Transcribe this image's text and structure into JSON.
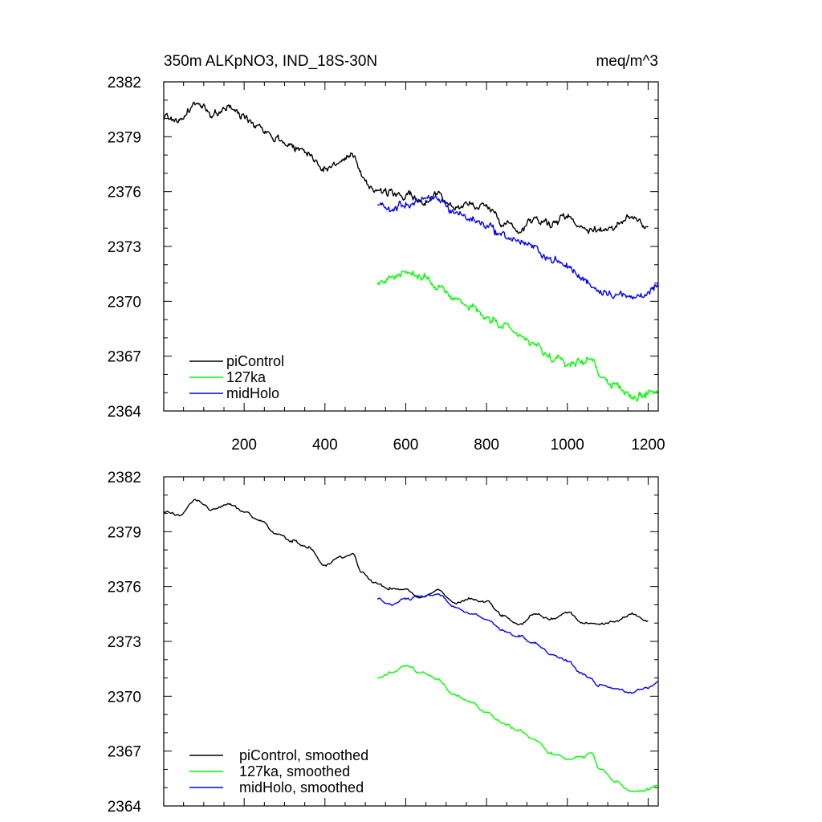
{
  "chart_data": [
    {
      "type": "line",
      "panel": "raw",
      "title_left": "350m ALKpNO3, IND_18S-30N",
      "title_right": "meq/m^3",
      "xlim": [
        1,
        1225
      ],
      "ylim": [
        2364,
        2382
      ],
      "yticks": [
        "2382",
        "2379",
        "2376",
        "2373",
        "2370",
        "2367",
        "2364"
      ],
      "xticks": [
        "200",
        "400",
        "600",
        "800",
        "1000",
        "1200"
      ],
      "show_x_tick_labels": true,
      "legend_position": "bottom-left",
      "series": [
        {
          "name": "piControl",
          "color": "#000000",
          "x": [
            1,
            40,
            80,
            120,
            160,
            200,
            240,
            280,
            320,
            360,
            400,
            440,
            470,
            490,
            520,
            560,
            600,
            640,
            680,
            720,
            760,
            800,
            840,
            880,
            920,
            960,
            1000,
            1040,
            1080,
            1120,
            1160,
            1200
          ],
          "values": [
            2380.1,
            2379.9,
            2380.8,
            2380.2,
            2380.6,
            2380.1,
            2379.6,
            2378.9,
            2378.5,
            2378.1,
            2377.2,
            2377.7,
            2377.9,
            2376.8,
            2376.2,
            2375.9,
            2375.8,
            2375.4,
            2375.9,
            2375.1,
            2375.3,
            2375.2,
            2374.4,
            2373.9,
            2374.6,
            2374.2,
            2374.7,
            2374.0,
            2373.9,
            2374.1,
            2374.6,
            2374.1
          ]
        },
        {
          "name": "127ka",
          "color": "#00ff00",
          "x": [
            530,
            560,
            600,
            640,
            680,
            720,
            760,
            800,
            840,
            880,
            920,
            960,
            1000,
            1040,
            1060,
            1080,
            1120,
            1160,
            1200,
            1225
          ],
          "values": [
            2371.0,
            2371.3,
            2371.6,
            2371.3,
            2370.9,
            2370.1,
            2369.7,
            2369.1,
            2368.6,
            2368.1,
            2367.6,
            2366.9,
            2366.6,
            2366.7,
            2366.9,
            2366.0,
            2365.3,
            2364.8,
            2364.9,
            2365.2
          ]
        },
        {
          "name": "midHolo",
          "color": "#0000ff",
          "x": [
            530,
            560,
            600,
            640,
            680,
            720,
            760,
            800,
            840,
            880,
            920,
            960,
            1000,
            1040,
            1080,
            1120,
            1160,
            1200,
            1225
          ],
          "values": [
            2375.3,
            2375.0,
            2375.3,
            2375.5,
            2375.6,
            2374.9,
            2374.5,
            2374.2,
            2373.6,
            2373.3,
            2372.9,
            2372.3,
            2371.9,
            2371.2,
            2370.6,
            2370.4,
            2370.2,
            2370.5,
            2370.8
          ]
        }
      ],
      "legend": [
        "piControl",
        "127ka",
        "midHolo"
      ]
    },
    {
      "type": "line",
      "panel": "smoothed",
      "xlim": [
        1,
        1225
      ],
      "ylim": [
        2364,
        2382
      ],
      "yticks": [
        "2382",
        "2379",
        "2376",
        "2373",
        "2370",
        "2367",
        "2364"
      ],
      "xticks": [
        "200",
        "400",
        "600",
        "800",
        "1000",
        "1200"
      ],
      "show_x_tick_labels": false,
      "legend_position": "bottom-left",
      "series": [
        {
          "name": "piControl, smoothed",
          "color": "#000000",
          "x": [
            1,
            40,
            80,
            120,
            160,
            200,
            240,
            280,
            320,
            360,
            400,
            440,
            470,
            490,
            520,
            560,
            600,
            640,
            680,
            720,
            760,
            800,
            840,
            880,
            920,
            960,
            1000,
            1040,
            1080,
            1120,
            1160,
            1200
          ],
          "values": [
            2380.1,
            2379.9,
            2380.7,
            2380.2,
            2380.5,
            2380.1,
            2379.6,
            2378.9,
            2378.5,
            2378.1,
            2377.2,
            2377.6,
            2377.8,
            2376.8,
            2376.2,
            2375.9,
            2375.8,
            2375.4,
            2375.8,
            2375.1,
            2375.3,
            2375.2,
            2374.4,
            2373.9,
            2374.5,
            2374.2,
            2374.6,
            2374.0,
            2373.9,
            2374.1,
            2374.5,
            2374.1
          ]
        },
        {
          "name": "127ka, smoothed",
          "color": "#00ff00",
          "x": [
            530,
            560,
            600,
            640,
            680,
            720,
            760,
            800,
            840,
            880,
            920,
            960,
            1000,
            1040,
            1060,
            1080,
            1120,
            1160,
            1200,
            1225
          ],
          "values": [
            2371.0,
            2371.3,
            2371.6,
            2371.3,
            2370.9,
            2370.1,
            2369.7,
            2369.1,
            2368.6,
            2368.1,
            2367.6,
            2366.9,
            2366.6,
            2366.7,
            2366.9,
            2366.0,
            2365.3,
            2364.8,
            2364.9,
            2365.2
          ]
        },
        {
          "name": "midHolo, smoothed",
          "color": "#0000ff",
          "x": [
            530,
            560,
            600,
            640,
            680,
            720,
            760,
            800,
            840,
            880,
            920,
            960,
            1000,
            1040,
            1080,
            1120,
            1160,
            1200,
            1225
          ],
          "values": [
            2375.3,
            2375.0,
            2375.3,
            2375.5,
            2375.6,
            2374.9,
            2374.5,
            2374.2,
            2373.6,
            2373.3,
            2372.9,
            2372.3,
            2371.9,
            2371.2,
            2370.6,
            2370.4,
            2370.2,
            2370.5,
            2370.8
          ]
        }
      ],
      "legend": [
        "piControl, smoothed",
        "127ka, smoothed",
        "midHolo, smoothed"
      ]
    }
  ]
}
